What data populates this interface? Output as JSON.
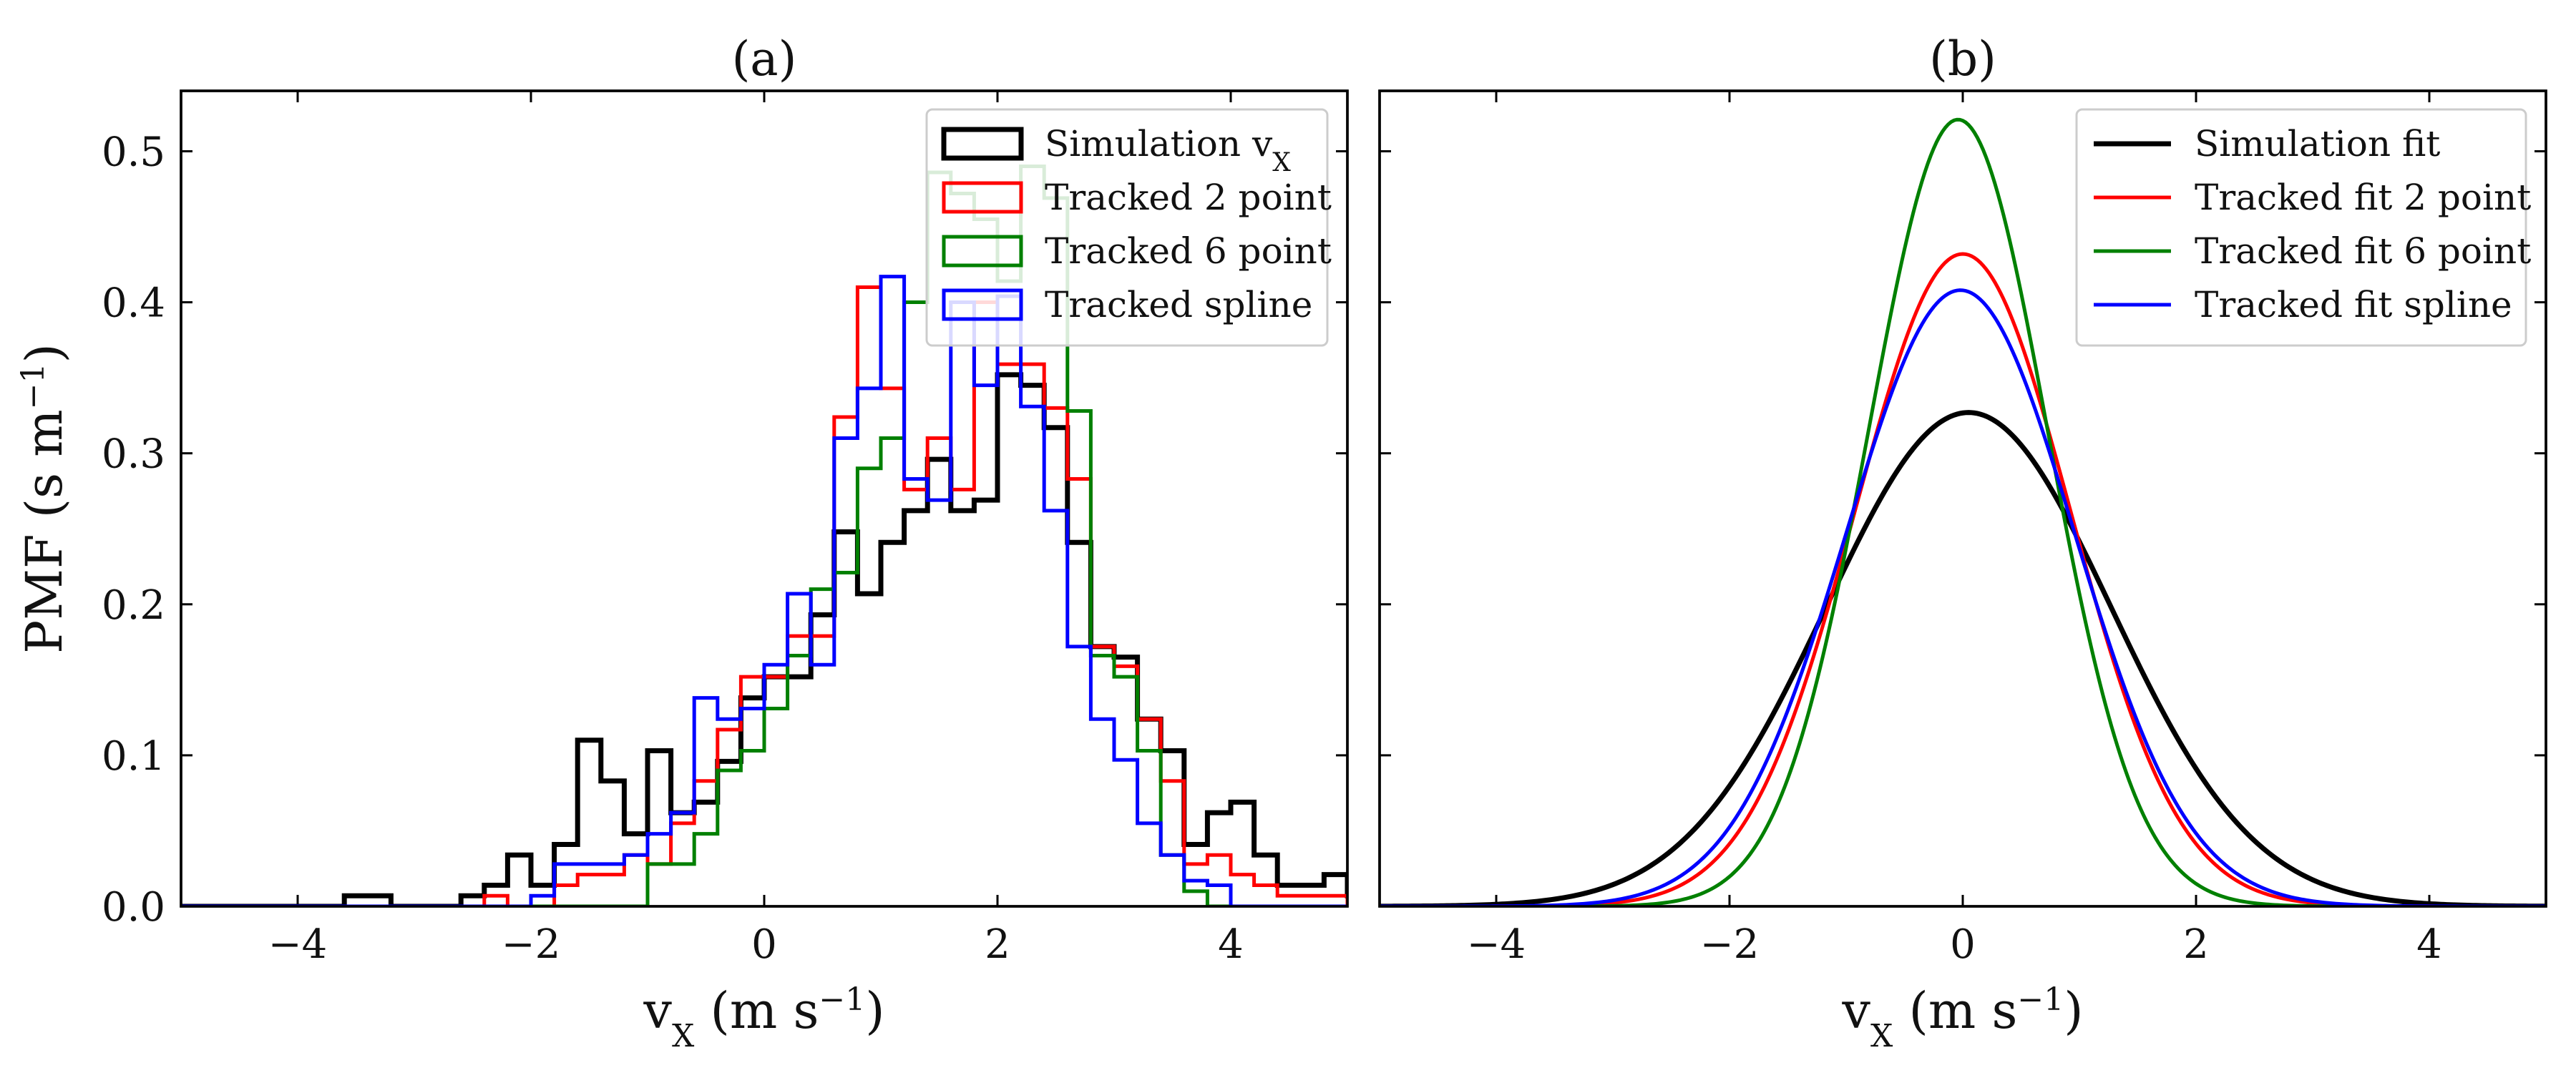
{
  "chart_data": [
    {
      "type": "histogram-step",
      "title": "(a)",
      "xlabel_html": "v<tspan baseline-shift='sub' font-size='44px'>X</tspan> (m s<tspan baseline-shift='super' font-size='44px'>−1</tspan>)",
      "xlabel": "vX (m s−1)",
      "ylabel": "PMF (s m−1)",
      "xlim": [
        -5,
        5
      ],
      "ylim": [
        0,
        0.54
      ],
      "xticks": [
        -4,
        -2,
        0,
        2,
        4
      ],
      "xtick_labels": [
        "−4",
        "−2",
        "0",
        "2",
        "4"
      ],
      "yticks": [
        0.0,
        0.1,
        0.2,
        0.3,
        0.4,
        0.5
      ],
      "ytick_labels": [
        "0.0",
        "0.1",
        "0.2",
        "0.3",
        "0.4",
        "0.5"
      ],
      "legend_position": "top-right",
      "bin_width": 0.2,
      "series": [
        {
          "name": "Simulation vX",
          "color": "#000000",
          "x_start": -5.0,
          "values": [
            0,
            0,
            0,
            0,
            0,
            0,
            0,
            0.007,
            0.007,
            0,
            0,
            0,
            0.007,
            0.014,
            0.034,
            0.014,
            0.041,
            0.11,
            0.083,
            0.048,
            0.103,
            0.062,
            0.069,
            0.096,
            0.138,
            0.152,
            0.152,
            0.193,
            0.248,
            0.207,
            0.241,
            0.262,
            0.296,
            0.262,
            0.269,
            0.352,
            0.345,
            0.317,
            0.241,
            0.172,
            0.165,
            0.124,
            0.103,
            0.041,
            0.062,
            0.069,
            0.034,
            0.014,
            0.014,
            0.021,
            0.007,
            0,
            0.021,
            0,
            0,
            0,
            0,
            0,
            0,
            0
          ]
        },
        {
          "name": "Tracked 2 point",
          "color": "#ff0000",
          "x_start": -5.0,
          "values": [
            0,
            0,
            0,
            0,
            0,
            0,
            0,
            0,
            0,
            0,
            0,
            0,
            0,
            0.007,
            0,
            0,
            0.014,
            0.021,
            0.021,
            0.034,
            0.028,
            0.055,
            0.083,
            0.117,
            0.152,
            0.152,
            0.179,
            0.179,
            0.324,
            0.41,
            0.343,
            0.276,
            0.31,
            0.276,
            0.4,
            0.359,
            0.359,
            0.33,
            0.283,
            0.172,
            0.159,
            0.124,
            0.083,
            0.028,
            0.034,
            0.021,
            0.014,
            0.007,
            0.007,
            0.007,
            0,
            0,
            0,
            0,
            0,
            0,
            0,
            0,
            0,
            0
          ]
        },
        {
          "name": "Tracked 6 point",
          "color": "#008000",
          "x_start": -5.0,
          "values": [
            0,
            0,
            0,
            0,
            0,
            0,
            0,
            0,
            0,
            0,
            0,
            0,
            0,
            0,
            0,
            0,
            0,
            0,
            0,
            0,
            0.028,
            0.028,
            0.048,
            0.09,
            0.103,
            0.131,
            0.166,
            0.21,
            0.221,
            0.29,
            0.31,
            0.4,
            0.486,
            0.472,
            0.455,
            0.414,
            0.49,
            0.469,
            0.328,
            0.166,
            0.152,
            0.103,
            0.034,
            0.01,
            0,
            0,
            0,
            0,
            0,
            0,
            0,
            0,
            0,
            0,
            0,
            0,
            0,
            0,
            0,
            0
          ]
        },
        {
          "name": "Tracked spline",
          "color": "#0000ff",
          "x_start": -5.0,
          "values": [
            0,
            0,
            0,
            0,
            0,
            0,
            0,
            0,
            0,
            0,
            0,
            0,
            0,
            0,
            0,
            0.007,
            0.028,
            0.028,
            0.028,
            0.034,
            0.048,
            0.062,
            0.138,
            0.124,
            0.131,
            0.16,
            0.207,
            0.16,
            0.31,
            0.343,
            0.417,
            0.283,
            0.269,
            0.4,
            0.345,
            0.404,
            0.331,
            0.262,
            0.172,
            0.124,
            0.097,
            0.055,
            0.034,
            0.017,
            0.014,
            0,
            0,
            0,
            0,
            0,
            0,
            0,
            0,
            0,
            0,
            0,
            0,
            0,
            0,
            0
          ]
        }
      ],
      "legend_labels_html": [
        "Simulation v<tspan baseline-shift='sub' font-size='36px'>X</tspan>",
        "Tracked 2 point",
        "Tracked 6 point",
        "Tracked spline"
      ]
    },
    {
      "type": "line",
      "title": "(b)",
      "xlabel_html": "v<tspan baseline-shift='sub' font-size='44px'>X</tspan> (m s<tspan baseline-shift='super' font-size='44px'>−1</tspan>)",
      "xlabel": "vX (m s−1)",
      "xlim": [
        -5,
        5
      ],
      "ylim": [
        0,
        0.54
      ],
      "xticks": [
        -4,
        -2,
        0,
        2,
        4
      ],
      "xtick_labels": [
        "−4",
        "−2",
        "0",
        "2",
        "4"
      ],
      "yticks": [
        0.0,
        0.1,
        0.2,
        0.3,
        0.4,
        0.5
      ],
      "legend_position": "top-right",
      "series": [
        {
          "name": "Simulation fit",
          "color": "#000000",
          "mean": 0.05,
          "peak": 0.327
        },
        {
          "name": "Tracked fit 2 point",
          "color": "#ff0000",
          "mean": 0.0,
          "peak": 0.432
        },
        {
          "name": "Tracked fit 6 point",
          "color": "#008000",
          "mean": -0.04,
          "peak": 0.521
        },
        {
          "name": "Tracked fit spline",
          "color": "#0000ff",
          "mean": -0.02,
          "peak": 0.408
        }
      ]
    }
  ]
}
